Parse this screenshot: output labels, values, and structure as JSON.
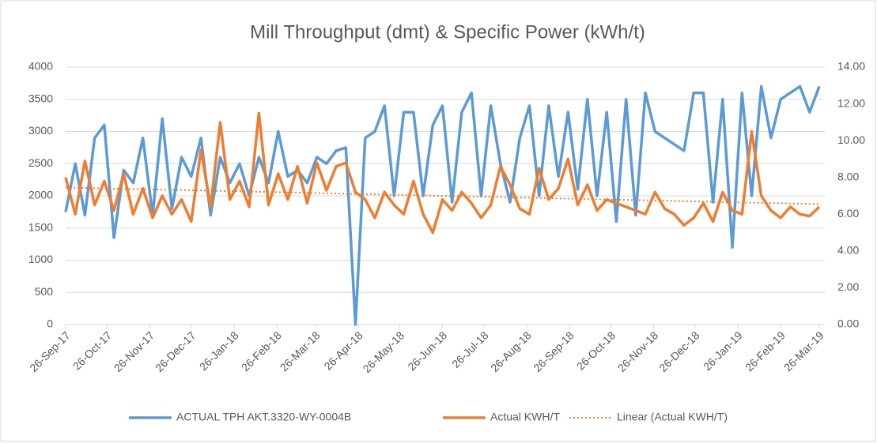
{
  "chart_data": {
    "type": "line",
    "title": "Mill Throughput (dmt) & Specific Power (kWh/t)",
    "x": [
      "2017-09-26",
      "2017-10-03",
      "2017-10-10",
      "2017-10-17",
      "2017-10-24",
      "2017-10-31",
      "2017-11-07",
      "2017-11-14",
      "2017-11-21",
      "2017-11-28",
      "2017-12-05",
      "2017-12-12",
      "2017-12-19",
      "2017-12-26",
      "2018-01-02",
      "2018-01-09",
      "2018-01-16",
      "2018-01-23",
      "2018-01-30",
      "2018-02-06",
      "2018-02-13",
      "2018-02-20",
      "2018-02-27",
      "2018-03-06",
      "2018-03-13",
      "2018-03-20",
      "2018-03-27",
      "2018-04-03",
      "2018-04-10",
      "2018-04-17",
      "2018-04-24",
      "2018-05-01",
      "2018-05-08",
      "2018-05-15",
      "2018-05-22",
      "2018-05-29",
      "2018-06-05",
      "2018-06-12",
      "2018-06-19",
      "2018-06-26",
      "2018-07-03",
      "2018-07-10",
      "2018-07-17",
      "2018-07-24",
      "2018-07-31",
      "2018-08-07",
      "2018-08-14",
      "2018-08-21",
      "2018-08-28",
      "2018-09-04",
      "2018-09-11",
      "2018-09-18",
      "2018-09-25",
      "2018-10-02",
      "2018-10-09",
      "2018-10-16",
      "2018-10-23",
      "2018-10-30",
      "2018-11-06",
      "2018-11-13",
      "2018-11-20",
      "2018-11-27",
      "2018-12-04",
      "2018-12-11",
      "2018-12-18",
      "2018-12-25",
      "2019-01-01",
      "2019-01-08",
      "2019-01-15",
      "2019-01-22",
      "2019-01-29",
      "2019-02-05",
      "2019-02-12",
      "2019-02-19",
      "2019-02-26",
      "2019-03-05",
      "2019-03-12",
      "2019-03-19",
      "2019-03-26"
    ],
    "series": [
      {
        "name": "ACTUAL TPH AKT.3320-WY-0004B",
        "color": "#5b9bd5",
        "axis": "y",
        "values": [
          1750,
          2500,
          1700,
          2900,
          3100,
          1350,
          2400,
          2200,
          2900,
          1700,
          3200,
          1800,
          2600,
          2300,
          2900,
          1700,
          2600,
          2200,
          2500,
          2000,
          2600,
          2200,
          3000,
          2300,
          2400,
          2200,
          2600,
          2500,
          2700,
          2750,
          0,
          2900,
          3000,
          3400,
          2000,
          3300,
          3300,
          2000,
          3100,
          3400,
          1900,
          3300,
          3600,
          2000,
          3400,
          2500,
          1900,
          2900,
          3400,
          2000,
          3400,
          2300,
          3300,
          2100,
          3500,
          2000,
          3300,
          1600,
          3500,
          1700,
          3600,
          3000,
          2900,
          2800,
          2700,
          3600,
          3600,
          1900,
          3500,
          1200,
          3600,
          2000,
          3700,
          2900,
          3500,
          3600,
          3700,
          3300,
          3700
        ]
      },
      {
        "name": "Actual KWH/T",
        "color": "#ed7d31",
        "axis": "y2",
        "values": [
          8.0,
          6.0,
          8.9,
          6.5,
          7.8,
          6.2,
          8.2,
          6.0,
          7.4,
          5.8,
          7.0,
          6.0,
          6.8,
          5.6,
          9.5,
          6.4,
          11.0,
          6.8,
          7.8,
          6.4,
          11.5,
          6.5,
          8.2,
          6.8,
          8.6,
          6.6,
          8.8,
          7.3,
          8.6,
          8.8,
          7.2,
          6.8,
          5.8,
          7.2,
          6.5,
          6.0,
          7.8,
          6.0,
          5.0,
          6.8,
          6.2,
          7.2,
          6.6,
          5.8,
          6.5,
          8.6,
          7.6,
          6.3,
          6.0,
          8.5,
          6.8,
          7.4,
          9.0,
          6.5,
          7.6,
          6.2,
          6.8,
          6.6,
          6.4,
          6.2,
          6.0,
          7.2,
          6.3,
          6.0,
          5.4,
          5.8,
          6.6,
          5.6,
          7.2,
          6.2,
          6.0,
          10.5,
          7.0,
          6.2,
          5.8,
          6.4,
          6.0,
          5.9,
          6.4
        ]
      },
      {
        "name": "Linear (Actual KWH/T)",
        "color": "#ed7d31",
        "axis": "y2",
        "dotted": true,
        "x": [
          "2017-09-26",
          "2019-03-26"
        ],
        "values": [
          7.45,
          6.55
        ]
      }
    ],
    "xlim": [
      "2017-09-26",
      "2019-03-30"
    ],
    "xticks": [
      {
        "value": "2017-09-26",
        "label": "26-Sep-17"
      },
      {
        "value": "2017-10-26",
        "label": "26-Oct-17"
      },
      {
        "value": "2017-11-26",
        "label": "26-Nov-17"
      },
      {
        "value": "2017-12-26",
        "label": "26-Dec-17"
      },
      {
        "value": "2018-01-26",
        "label": "26-Jan-18"
      },
      {
        "value": "2018-02-26",
        "label": "26-Feb-18"
      },
      {
        "value": "2018-03-26",
        "label": "26-Mar-18"
      },
      {
        "value": "2018-04-26",
        "label": "26-Apr-18"
      },
      {
        "value": "2018-05-26",
        "label": "26-May-18"
      },
      {
        "value": "2018-06-26",
        "label": "26-Jun-18"
      },
      {
        "value": "2018-07-26",
        "label": "26-Jul-18"
      },
      {
        "value": "2018-08-26",
        "label": "26-Aug-18"
      },
      {
        "value": "2018-09-26",
        "label": "26-Sep-18"
      },
      {
        "value": "2018-10-26",
        "label": "26-Oct-18"
      },
      {
        "value": "2018-11-26",
        "label": "26-Nov-18"
      },
      {
        "value": "2018-12-26",
        "label": "26-Dec-18"
      },
      {
        "value": "2019-01-26",
        "label": "26-Jan-19"
      },
      {
        "value": "2019-02-26",
        "label": "26-Feb-19"
      },
      {
        "value": "2019-03-26",
        "label": "26-Mar-19"
      }
    ],
    "ylim": [
      0,
      4000
    ],
    "yticks": [
      0,
      500,
      1000,
      1500,
      2000,
      2500,
      3000,
      3500,
      4000
    ],
    "y2lim": [
      0,
      14
    ],
    "y2ticks": [
      {
        "value": 0,
        "label": "0.00"
      },
      {
        "value": 2,
        "label": "2.00"
      },
      {
        "value": 4,
        "label": "4.00"
      },
      {
        "value": 6,
        "label": "6.00"
      },
      {
        "value": 8,
        "label": "8.00"
      },
      {
        "value": 10,
        "label": "10.00"
      },
      {
        "value": 12,
        "label": "12.00"
      },
      {
        "value": 14,
        "label": "14.00"
      }
    ],
    "grid": true,
    "legend": "bottom"
  }
}
